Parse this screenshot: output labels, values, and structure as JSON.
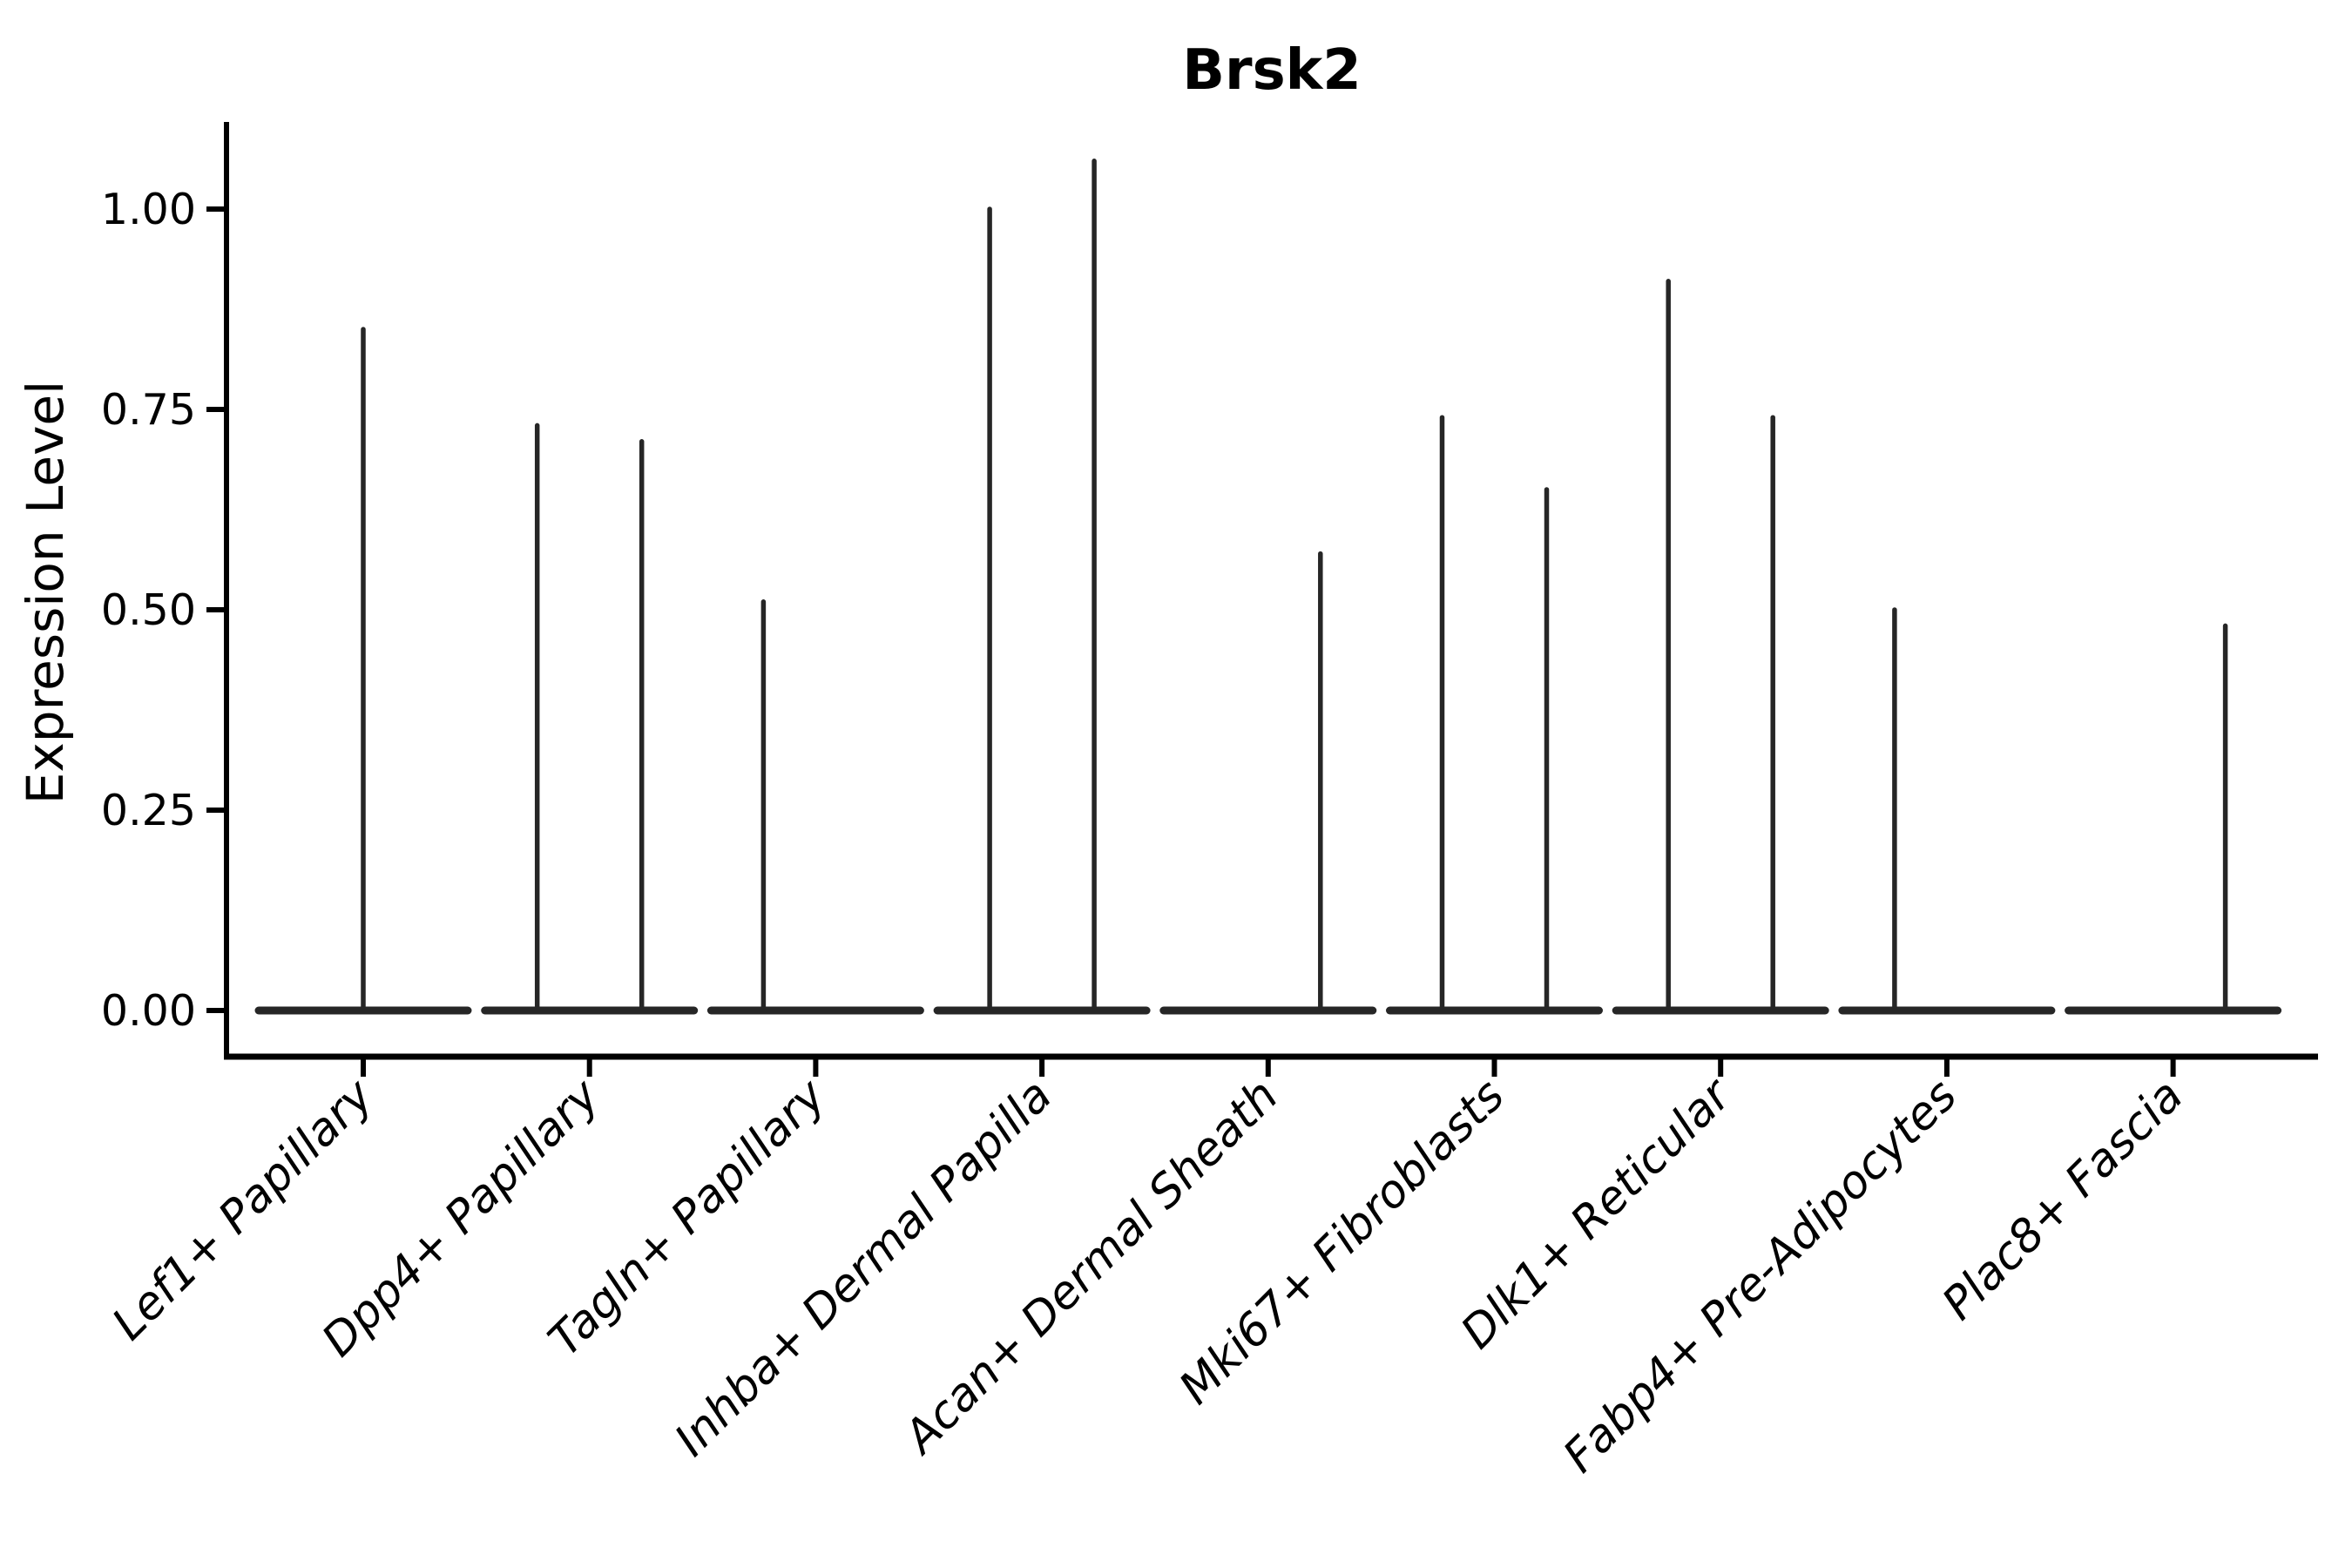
{
  "figure": {
    "title": "Brsk2",
    "y_axis_label": "Expression Level"
  },
  "chart_data": {
    "type": "violin",
    "title": "Brsk2",
    "xlabel": "",
    "ylabel": "Expression Level",
    "ylim": [
      0.0,
      1.11
    ],
    "y_ticks": [
      {
        "value": 0.0,
        "label": "0.00"
      },
      {
        "value": 0.25,
        "label": "0.25"
      },
      {
        "value": 0.5,
        "label": "0.50"
      },
      {
        "value": 0.75,
        "label": "0.75"
      },
      {
        "value": 1.0,
        "label": "1.00"
      }
    ],
    "grid": false,
    "legend": null,
    "violin_stroke_color": "#262626",
    "axis_color": "#000000",
    "categories": [
      "Lef1+ Papillary",
      "Dpp4+ Papillary",
      "Tagln+ Papillary",
      "Inhba+ Dermal Papilla",
      "Acan+ Dermal Sheath",
      "Mki67+ Fibroblasts",
      "Dlk1+ Reticular",
      "Fabp4+ Pre-Adipocytes",
      "Plac8+ Fascia"
    ],
    "baseline_value": 0.0,
    "violins": [
      {
        "category": "Lef1+ Papillary",
        "spikes": [
          {
            "position": "center",
            "max_expression": 0.85
          }
        ]
      },
      {
        "category": "Dpp4+ Papillary",
        "spikes": [
          {
            "position": "left",
            "max_expression": 0.73
          },
          {
            "position": "right",
            "max_expression": 0.71
          }
        ]
      },
      {
        "category": "Tagln+ Papillary",
        "spikes": [
          {
            "position": "left",
            "max_expression": 0.51
          }
        ]
      },
      {
        "category": "Inhba+ Dermal Papilla",
        "spikes": [
          {
            "position": "left",
            "max_expression": 1.0
          },
          {
            "position": "right",
            "max_expression": 1.06
          }
        ]
      },
      {
        "category": "Acan+ Dermal Sheath",
        "spikes": [
          {
            "position": "right",
            "max_expression": 0.57
          }
        ]
      },
      {
        "category": "Mki67+ Fibroblasts",
        "spikes": [
          {
            "position": "left",
            "max_expression": 0.74
          },
          {
            "position": "right",
            "max_expression": 0.65
          }
        ]
      },
      {
        "category": "Dlk1+ Reticular",
        "spikes": [
          {
            "position": "left",
            "max_expression": 0.91
          },
          {
            "position": "right",
            "max_expression": 0.74
          }
        ]
      },
      {
        "category": "Fabp4+ Pre-Adipocytes",
        "spikes": [
          {
            "position": "left",
            "max_expression": 0.5
          }
        ]
      },
      {
        "category": "Plac8+ Fascia",
        "spikes": [
          {
            "position": "right",
            "max_expression": 0.48
          }
        ]
      }
    ]
  }
}
